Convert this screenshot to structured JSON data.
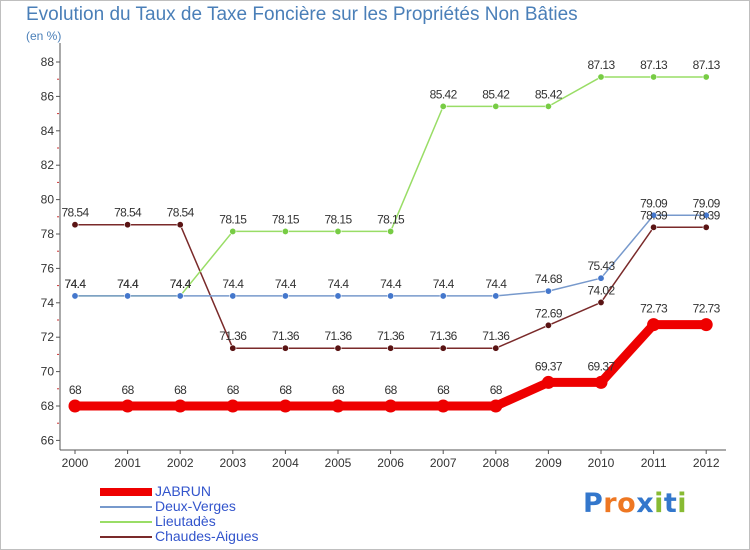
{
  "chart_data": {
    "type": "line",
    "title": "Evolution du Taux de Taxe Foncière sur les Propriétés Non Bâties",
    "unit_label": "(en %)",
    "xlabel": "",
    "ylabel": "(en %)",
    "categories": [
      "2000",
      "2001",
      "2002",
      "2003",
      "2004",
      "2005",
      "2006",
      "2007",
      "2008",
      "2009",
      "2010",
      "2011",
      "2012"
    ],
    "ylim": [
      66,
      88
    ],
    "yticks": [
      66,
      68,
      70,
      72,
      74,
      76,
      78,
      80,
      82,
      84,
      86,
      88
    ],
    "ytick_labels": [
      "66",
      "68",
      "70",
      "72",
      "74",
      "76",
      "78",
      "80",
      "82",
      "84",
      "86",
      "88"
    ],
    "grid": false,
    "legend_position": "bottom-left",
    "series": [
      {
        "name": "Chaudes-Aigues",
        "color": "#7a2a2a",
        "marker_color": "#5a1414",
        "values": [
          78.54,
          78.54,
          78.54,
          71.36,
          71.36,
          71.36,
          71.36,
          71.36,
          71.36,
          72.69,
          74.02,
          78.39,
          78.39
        ],
        "labels": [
          "78.54",
          "78.54",
          "78.54",
          "71.36",
          "71.36",
          "71.36",
          "71.36",
          "71.36",
          "71.36",
          "72.69",
          "74.02",
          "78.39",
          "78.39"
        ]
      },
      {
        "name": "Lieutadès",
        "color": "#99dd66",
        "marker_color": "#77cc44",
        "values": [
          74.4,
          74.4,
          74.4,
          78.15,
          78.15,
          78.15,
          78.15,
          85.42,
          85.42,
          85.42,
          87.13,
          87.13,
          87.13
        ],
        "labels": [
          "74.4",
          "74.4",
          "74.4",
          "78.15",
          "78.15",
          "78.15",
          "78.15",
          "85.42",
          "85.42",
          "85.42",
          "87.13",
          "87.13",
          "87.13"
        ]
      },
      {
        "name": "Deux-Verges",
        "color": "#7799cc",
        "marker_color": "#4477cc",
        "values": [
          74.4,
          74.4,
          74.4,
          74.4,
          74.4,
          74.4,
          74.4,
          74.4,
          74.4,
          74.68,
          75.43,
          79.09,
          79.09
        ],
        "labels": [
          "74.4",
          "74.4",
          "74.4",
          "74.4",
          "74.4",
          "74.4",
          "74.4",
          "74.4",
          "74.4",
          "74.68",
          "75.43",
          "79.09",
          "79.09"
        ]
      },
      {
        "name": "JABRUN",
        "color": "#ee0000",
        "marker_color": "#ee0000",
        "values": [
          68,
          68,
          68,
          68,
          68,
          68,
          68,
          68,
          68,
          69.37,
          69.37,
          72.73,
          72.73
        ],
        "labels": [
          "68",
          "68",
          "68",
          "68",
          "68",
          "68",
          "68",
          "68",
          "68",
          "69.37",
          "69.37",
          "72.73",
          "72.73"
        ]
      }
    ],
    "legend": [
      {
        "name": "JABRUN",
        "color": "#ee0000"
      },
      {
        "name": "Deux-Verges",
        "color": "#7799cc"
      },
      {
        "name": "Lieutadès",
        "color": "#99dd66"
      },
      {
        "name": "Chaudes-Aigues",
        "color": "#7a2a2a"
      }
    ]
  },
  "logo": {
    "text": "Proxiti",
    "letter_colors": [
      "#3377cc",
      "#ee7722",
      "#ee7722",
      "#3377cc",
      "#88bb33",
      "#3377cc",
      "#88bb33"
    ]
  }
}
